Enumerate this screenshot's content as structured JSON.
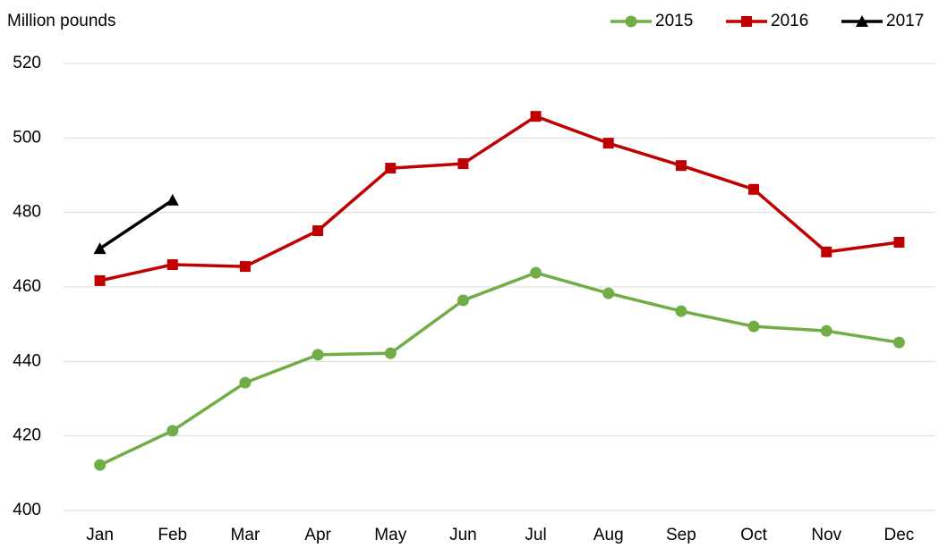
{
  "chart_data": {
    "type": "line",
    "y_label": "Million pounds",
    "categories": [
      "Jan",
      "Feb",
      "Mar",
      "Apr",
      "May",
      "Jun",
      "Jul",
      "Aug",
      "Sep",
      "Oct",
      "Nov",
      "Dec"
    ],
    "series": [
      {
        "name": "2015",
        "color": "#70ad47",
        "marker": "circle",
        "values": [
          412.2,
          421.4,
          434.3,
          441.8,
          442.2,
          456.4,
          463.8,
          458.3,
          453.5,
          449.4,
          448.2,
          445.1
        ]
      },
      {
        "name": "2016",
        "color": "#c00000",
        "marker": "square",
        "values": [
          461.7,
          466.0,
          465.5,
          475.1,
          491.9,
          493.1,
          505.8,
          498.6,
          492.6,
          486.2,
          469.4,
          472.0
        ]
      },
      {
        "name": "2017",
        "color": "#000000",
        "marker": "triangle",
        "values": [
          470.3,
          483.3,
          null,
          null,
          null,
          null,
          null,
          null,
          null,
          null,
          null,
          null
        ]
      }
    ],
    "ylim": [
      400,
      520
    ],
    "yticks": [
      400,
      420,
      440,
      460,
      480,
      500,
      520
    ],
    "grid": true,
    "legend": "upper right"
  }
}
